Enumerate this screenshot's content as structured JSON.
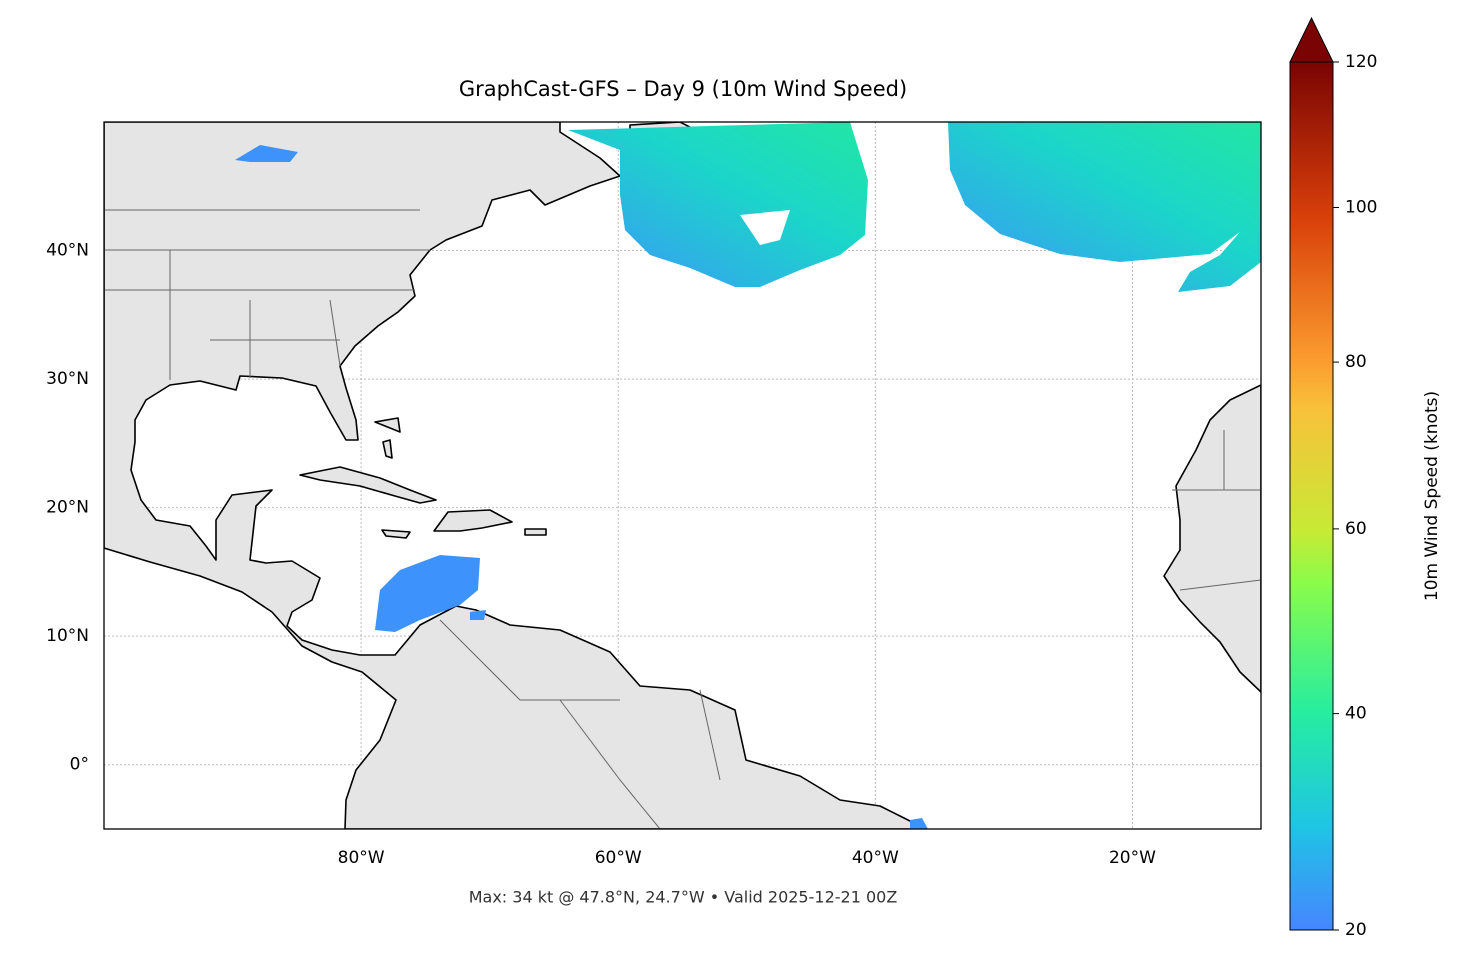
{
  "title": "GraphCast-GFS – Day 9 (10m Wind Speed)",
  "footer": "Max: 34 kt @ 47.8°N, 24.7°W • Valid 2025-12-21 00Z",
  "map": {
    "xlim": [
      -100,
      -10
    ],
    "ylim": [
      -5,
      50
    ],
    "xticks": [
      {
        "value": -80,
        "label": "80°W"
      },
      {
        "value": -60,
        "label": "60°W"
      },
      {
        "value": -40,
        "label": "40°W"
      },
      {
        "value": -20,
        "label": "20°W"
      }
    ],
    "yticks": [
      {
        "value": 0,
        "label": "0°"
      },
      {
        "value": 10,
        "label": "10°N"
      },
      {
        "value": 20,
        "label": "20°N"
      },
      {
        "value": 30,
        "label": "30°N"
      },
      {
        "value": 40,
        "label": "40°N"
      }
    ],
    "grid": true
  },
  "colorbar": {
    "label": "10m Wind Speed (knots)",
    "lim": [
      20,
      120
    ],
    "ticks": [
      20,
      40,
      60,
      80,
      100,
      120
    ]
  }
}
